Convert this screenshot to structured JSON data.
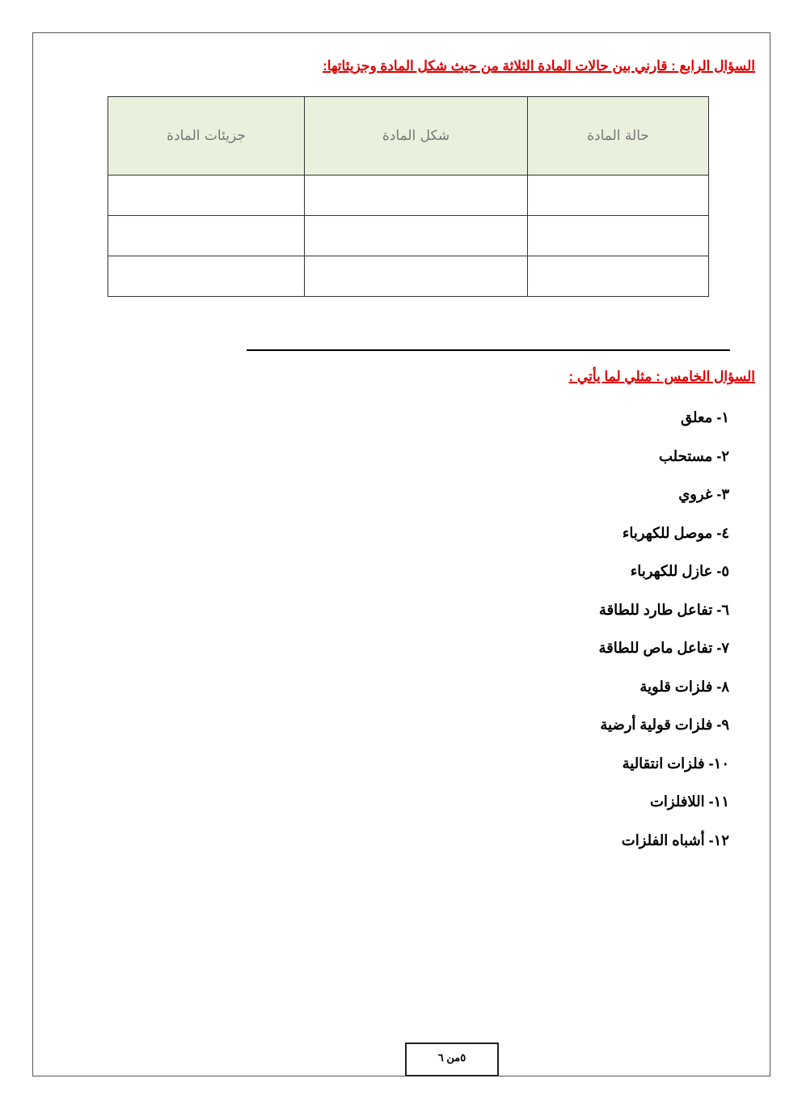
{
  "q4": {
    "title": "السؤال الرابع :  قارني بين حالات المادة الثلاثة من حيث شكل المادة وجزيئاتها:",
    "headers": [
      "حالة المادة",
      "شكل المادة",
      "جزيئات المادة"
    ],
    "rows": [
      [
        "",
        "",
        ""
      ],
      [
        "",
        "",
        ""
      ],
      [
        "",
        "",
        ""
      ]
    ]
  },
  "q5": {
    "title": "السؤال الخامس : مثلي لما يأتي :",
    "items": [
      "١- معلق",
      "٢- مستحلب",
      "٣- غروي",
      "٤- موصل للكهرباء",
      "٥- عازل للكهرباء",
      "٦- تفاعل طارد للطاقة",
      "٧- تفاعل ماص للطاقة",
      "٨- فلزات قلوية",
      "٩- فلزات قولية أرضية",
      "١٠- فلزات انتقالية",
      "١١- اللافلزات",
      "١٢- أشباه الفلزات"
    ]
  },
  "footer": {
    "page": "٥من ٦"
  }
}
